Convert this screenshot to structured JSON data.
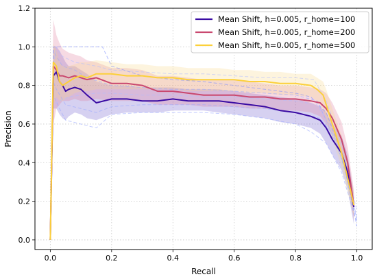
{
  "chart_data": {
    "type": "line",
    "title": "",
    "xlabel": "Recall",
    "ylabel": "Precision",
    "xlim": [
      -0.05,
      1.05
    ],
    "ylim": [
      -0.05,
      1.2
    ],
    "xticks": [
      0.0,
      0.2,
      0.4,
      0.6,
      0.8,
      1.0
    ],
    "xtick_labels": [
      "0.0",
      "0.2",
      "0.4",
      "0.6",
      "0.8",
      "1.0"
    ],
    "yticks": [
      0.0,
      0.2,
      0.4,
      0.6,
      0.8,
      1.0,
      1.2
    ],
    "ytick_labels": [
      "0.0",
      "0.2",
      "0.4",
      "0.6",
      "0.8",
      "1.0",
      "1.2"
    ],
    "grid": true,
    "legend_position": "top-right",
    "series": [
      {
        "name": "Mean Shift, h=0.005, r_home=100",
        "color": "#3a0ca3",
        "band_color": "#6a5acd",
        "x": [
          0.0,
          0.01,
          0.02,
          0.03,
          0.04,
          0.05,
          0.06,
          0.08,
          0.1,
          0.12,
          0.15,
          0.2,
          0.25,
          0.3,
          0.35,
          0.4,
          0.45,
          0.5,
          0.55,
          0.6,
          0.65,
          0.7,
          0.75,
          0.8,
          0.85,
          0.88,
          0.9,
          0.92,
          0.95,
          0.97,
          0.99
        ],
        "y": [
          0.0,
          0.85,
          0.87,
          0.82,
          0.8,
          0.77,
          0.78,
          0.79,
          0.78,
          0.75,
          0.71,
          0.73,
          0.73,
          0.72,
          0.72,
          0.73,
          0.72,
          0.72,
          0.72,
          0.71,
          0.7,
          0.69,
          0.67,
          0.66,
          0.64,
          0.62,
          0.58,
          0.52,
          0.45,
          0.35,
          0.17
        ],
        "lower": [
          0.0,
          0.68,
          0.68,
          0.65,
          0.63,
          0.62,
          0.64,
          0.66,
          0.65,
          0.63,
          0.62,
          0.65,
          0.66,
          0.66,
          0.66,
          0.67,
          0.67,
          0.67,
          0.66,
          0.65,
          0.64,
          0.63,
          0.61,
          0.6,
          0.58,
          0.55,
          0.5,
          0.44,
          0.36,
          0.26,
          0.08
        ],
        "upper": [
          0.0,
          1.0,
          1.0,
          0.98,
          0.95,
          0.92,
          0.9,
          0.9,
          0.88,
          0.86,
          0.82,
          0.8,
          0.8,
          0.79,
          0.79,
          0.79,
          0.78,
          0.78,
          0.78,
          0.77,
          0.76,
          0.75,
          0.74,
          0.73,
          0.71,
          0.69,
          0.66,
          0.6,
          0.54,
          0.44,
          0.24
        ]
      },
      {
        "name": "Mean Shift, h=0.005, r_home=200",
        "color": "#c9486f",
        "band_color": "#e07a9a",
        "x": [
          0.0,
          0.01,
          0.02,
          0.03,
          0.04,
          0.06,
          0.08,
          0.1,
          0.12,
          0.15,
          0.2,
          0.25,
          0.3,
          0.35,
          0.4,
          0.45,
          0.5,
          0.55,
          0.6,
          0.65,
          0.7,
          0.75,
          0.8,
          0.85,
          0.88,
          0.9,
          0.92,
          0.95,
          0.97,
          0.99
        ],
        "y": [
          0.0,
          0.9,
          0.88,
          0.85,
          0.85,
          0.84,
          0.85,
          0.84,
          0.83,
          0.84,
          0.81,
          0.81,
          0.8,
          0.77,
          0.77,
          0.76,
          0.75,
          0.75,
          0.75,
          0.74,
          0.74,
          0.73,
          0.73,
          0.72,
          0.71,
          0.68,
          0.63,
          0.52,
          0.4,
          0.18
        ],
        "lower": [
          0.0,
          0.6,
          0.68,
          0.7,
          0.72,
          0.72,
          0.73,
          0.72,
          0.72,
          0.73,
          0.72,
          0.72,
          0.72,
          0.7,
          0.7,
          0.7,
          0.69,
          0.69,
          0.69,
          0.68,
          0.68,
          0.67,
          0.67,
          0.66,
          0.64,
          0.6,
          0.55,
          0.44,
          0.32,
          0.1
        ],
        "upper": [
          0.0,
          1.14,
          1.06,
          1.02,
          0.99,
          0.97,
          0.96,
          0.95,
          0.93,
          0.92,
          0.89,
          0.89,
          0.88,
          0.85,
          0.85,
          0.84,
          0.83,
          0.83,
          0.83,
          0.82,
          0.81,
          0.8,
          0.8,
          0.79,
          0.78,
          0.76,
          0.71,
          0.61,
          0.48,
          0.26
        ]
      },
      {
        "name": "Mean Shift, h=0.005, r_home=500",
        "color": "#fcd03a",
        "band_color": "#f7d88a",
        "x": [
          0.0,
          0.01,
          0.02,
          0.03,
          0.04,
          0.06,
          0.08,
          0.1,
          0.12,
          0.15,
          0.2,
          0.25,
          0.3,
          0.35,
          0.4,
          0.45,
          0.5,
          0.55,
          0.6,
          0.65,
          0.7,
          0.75,
          0.8,
          0.85,
          0.87,
          0.89,
          0.9,
          0.92,
          0.95,
          0.97,
          0.99
        ],
        "y": [
          0.0,
          0.92,
          0.9,
          0.82,
          0.8,
          0.82,
          0.84,
          0.85,
          0.84,
          0.86,
          0.86,
          0.85,
          0.85,
          0.84,
          0.84,
          0.83,
          0.83,
          0.83,
          0.83,
          0.82,
          0.82,
          0.81,
          0.81,
          0.8,
          0.78,
          0.75,
          0.7,
          0.6,
          0.45,
          0.32,
          0.18
        ],
        "lower": [
          0.0,
          0.7,
          0.74,
          0.72,
          0.72,
          0.74,
          0.76,
          0.77,
          0.77,
          0.78,
          0.78,
          0.78,
          0.78,
          0.78,
          0.78,
          0.77,
          0.77,
          0.77,
          0.77,
          0.76,
          0.76,
          0.75,
          0.75,
          0.74,
          0.72,
          0.68,
          0.62,
          0.52,
          0.38,
          0.25,
          0.12
        ],
        "upper": [
          0.0,
          1.02,
          0.98,
          0.92,
          0.9,
          0.9,
          0.91,
          0.92,
          0.92,
          0.93,
          0.92,
          0.91,
          0.91,
          0.9,
          0.9,
          0.89,
          0.89,
          0.89,
          0.88,
          0.88,
          0.87,
          0.87,
          0.86,
          0.86,
          0.84,
          0.82,
          0.78,
          0.68,
          0.54,
          0.4,
          0.24
        ]
      }
    ],
    "runs": [
      {
        "color": "#7b8cff",
        "x": [
          0.0,
          0.005,
          0.01,
          0.03,
          0.05,
          0.1,
          0.15,
          0.17,
          0.2,
          0.3,
          0.4,
          0.5,
          0.6,
          0.7,
          0.8,
          0.85,
          0.9,
          0.95,
          0.99,
          1.0
        ],
        "y": [
          0.0,
          0.5,
          1.0,
          1.0,
          1.0,
          1.0,
          1.0,
          1.0,
          0.9,
          0.85,
          0.83,
          0.82,
          0.8,
          0.78,
          0.76,
          0.74,
          0.66,
          0.45,
          0.15,
          0.07
        ]
      },
      {
        "color": "#9aa8ff",
        "x": [
          0.0,
          0.01,
          0.03,
          0.05,
          0.1,
          0.15,
          0.2,
          0.3,
          0.4,
          0.5,
          0.6,
          0.7,
          0.8,
          0.85,
          0.9,
          0.95,
          1.0
        ],
        "y": [
          0.0,
          0.75,
          0.68,
          0.62,
          0.6,
          0.58,
          0.65,
          0.66,
          0.66,
          0.66,
          0.65,
          0.63,
          0.6,
          0.56,
          0.5,
          0.35,
          0.09
        ]
      },
      {
        "color": "#9aa8ff",
        "x": [
          0.0,
          0.01,
          0.02,
          0.04,
          0.08,
          0.12,
          0.2,
          0.3,
          0.4,
          0.5,
          0.6,
          0.7,
          0.8,
          0.87,
          0.9,
          0.95,
          1.0
        ],
        "y": [
          0.0,
          0.98,
          0.95,
          0.9,
          0.88,
          0.84,
          0.8,
          0.79,
          0.78,
          0.78,
          0.77,
          0.76,
          0.75,
          0.72,
          0.62,
          0.42,
          0.12
        ]
      },
      {
        "color": "#9aa8ff",
        "x": [
          0.0,
          0.01,
          0.02,
          0.05,
          0.1,
          0.15,
          0.2,
          0.3,
          0.4,
          0.5,
          0.6,
          0.7,
          0.8,
          0.88,
          0.92,
          0.96,
          1.0
        ],
        "y": [
          0.0,
          0.82,
          0.78,
          0.7,
          0.68,
          0.66,
          0.69,
          0.7,
          0.7,
          0.7,
          0.69,
          0.68,
          0.66,
          0.63,
          0.55,
          0.38,
          0.1
        ]
      },
      {
        "color": "#b3bdff",
        "x": [
          0.0,
          0.01,
          0.02,
          0.04,
          0.08,
          0.15,
          0.2,
          0.3,
          0.4,
          0.5,
          0.6,
          0.7,
          0.8,
          0.86,
          0.9,
          0.95,
          1.0
        ],
        "y": [
          0.0,
          0.9,
          1.0,
          0.95,
          0.92,
          0.9,
          0.88,
          0.87,
          0.86,
          0.86,
          0.85,
          0.84,
          0.84,
          0.83,
          0.72,
          0.5,
          0.15
        ]
      },
      {
        "color": "#b3bdff",
        "x": [
          0.0,
          0.01,
          0.03,
          0.06,
          0.1,
          0.15,
          0.2,
          0.3,
          0.4,
          0.5,
          0.6,
          0.7,
          0.8,
          0.87,
          0.91,
          0.95,
          1.0
        ],
        "y": [
          0.0,
          0.7,
          0.72,
          0.74,
          0.75,
          0.76,
          0.76,
          0.75,
          0.75,
          0.74,
          0.74,
          0.73,
          0.72,
          0.7,
          0.6,
          0.44,
          0.11
        ]
      }
    ]
  }
}
